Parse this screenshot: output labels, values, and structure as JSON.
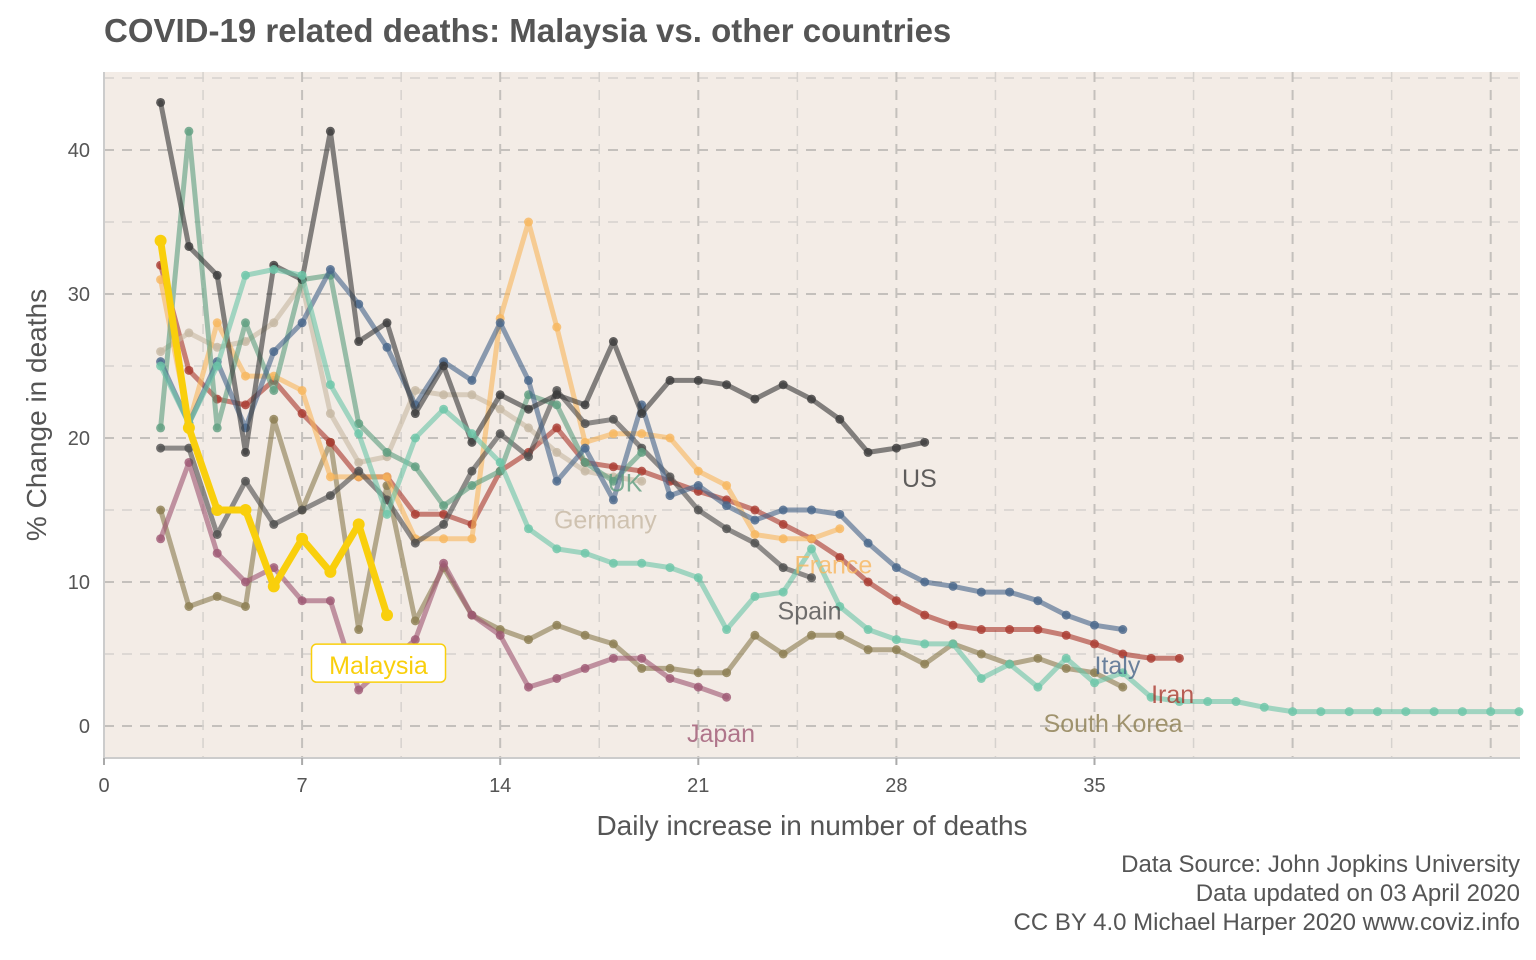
{
  "title": "COVID-19 related deaths: Malaysia vs. other countries",
  "captions": [
    "Data Source: John Jopkins University",
    "Data updated on 03 April 2020",
    "CC BY 4.0 Michael Harper 2020 www.coviz.info"
  ],
  "chart_data": {
    "type": "line",
    "title": "COVID-19 related deaths: Malaysia vs. other countries",
    "xlabel": "Daily increase in number of deaths",
    "ylabel": "% Change in deaths",
    "xlim": [
      0,
      50
    ],
    "ylim": [
      -2,
      45
    ],
    "xticks": [
      0,
      7,
      14,
      21,
      28,
      35
    ],
    "yticks": [
      0,
      10,
      20,
      30,
      40
    ],
    "grid": true,
    "legend": "none (direct labels)",
    "colors": {
      "panel_bg": "#F3ECE6",
      "highlight": "#F9CF0C"
    },
    "series": [
      {
        "name": "South Korea",
        "color": "#8B7D50",
        "label_at": [
          33.2,
          -0.4
        ],
        "x": [
          2,
          3,
          4,
          5,
          6,
          7,
          8,
          9,
          10,
          11,
          12,
          13,
          14,
          15,
          16,
          17,
          18,
          19,
          20,
          21,
          22,
          23,
          24,
          25,
          26,
          27,
          28,
          29,
          30,
          31,
          32,
          33,
          34,
          35,
          36
        ],
        "y": [
          15,
          8.3,
          9,
          8.3,
          21.3,
          15,
          19.7,
          6.7,
          16.7,
          7.3,
          11,
          7.7,
          6.7,
          6,
          7,
          6.3,
          5.7,
          4,
          4,
          3.7,
          3.7,
          6.3,
          5,
          6.3,
          6.3,
          5.3,
          5.3,
          4.3,
          5.7,
          5,
          4.3,
          4.7,
          4,
          3.7,
          2.7
        ]
      },
      {
        "name": "Japan",
        "color": "#9E5773",
        "label_at": [
          20.6,
          -1.1
        ],
        "x": [
          2,
          3,
          4,
          5,
          6,
          7,
          8,
          9,
          10,
          11,
          12,
          13,
          14,
          15,
          16,
          17,
          18,
          19,
          20,
          21,
          22
        ],
        "y": [
          13,
          18.3,
          12,
          10,
          11,
          8.7,
          8.7,
          2.5,
          4.3,
          6,
          11.3,
          7.7,
          6.3,
          2.7,
          3.3,
          4,
          4.7,
          4.7,
          3.3,
          2.7,
          2
        ]
      },
      {
        "name": "Iran",
        "color": "#A93A2F",
        "label_at": [
          37.0,
          1.6
        ],
        "x": [
          2,
          3,
          4,
          5,
          6,
          7,
          8,
          9,
          10,
          11,
          12,
          13,
          14,
          15,
          16,
          17,
          18,
          19,
          20,
          21,
          22,
          23,
          24,
          25,
          26,
          27,
          28,
          29,
          30,
          31,
          32,
          33,
          34,
          35,
          36,
          37,
          38
        ],
        "y": [
          32,
          24.7,
          22.7,
          22.3,
          24,
          21.7,
          19.7,
          17.3,
          17.3,
          14.7,
          14.7,
          14,
          17.7,
          19,
          20.7,
          18.3,
          18,
          17.7,
          17,
          16.3,
          15.7,
          15,
          14,
          13,
          11.7,
          10,
          8.7,
          7.7,
          7,
          6.7,
          6.7,
          6.7,
          6.3,
          5.7,
          5,
          4.7,
          4.7
        ]
      },
      {
        "name": "Germany",
        "color": "#C6B8A2",
        "label_at": [
          15.9,
          13.7
        ],
        "x": [
          2,
          3,
          4,
          5,
          6,
          7,
          8,
          9,
          10,
          11,
          12,
          13,
          14,
          15,
          16,
          17,
          18,
          19
        ],
        "y": [
          26,
          27.3,
          26.3,
          26.7,
          28,
          30.7,
          21.7,
          18.3,
          18.7,
          23.3,
          23,
          23,
          22,
          20.7,
          19,
          17.7,
          17.3,
          17
        ]
      },
      {
        "name": "France",
        "color": "#F7B65E",
        "label_at": [
          24.4,
          10.6
        ],
        "x": [
          2,
          3,
          4,
          5,
          6,
          7,
          8,
          9,
          10,
          11,
          12,
          13,
          14,
          15,
          16,
          17,
          18,
          19,
          20,
          21,
          22,
          23,
          24,
          25,
          26
        ],
        "y": [
          31,
          21,
          28,
          24.3,
          24.3,
          23.3,
          17.3,
          17.3,
          17.3,
          13,
          13,
          13,
          28.3,
          35,
          27.7,
          19.7,
          20.3,
          20.3,
          20,
          17.7,
          16.7,
          13.3,
          13,
          13,
          13.7
        ]
      },
      {
        "name": "Spain",
        "color": "#4D4D4D",
        "label_at": [
          23.8,
          7.4
        ],
        "x": [
          2,
          3,
          4,
          5,
          6,
          7,
          8,
          9,
          10,
          11,
          12,
          13,
          14,
          15,
          16,
          17,
          18,
          19,
          20,
          21,
          22,
          23,
          24,
          25
        ],
        "y": [
          19.3,
          19.3,
          13.3,
          17,
          14,
          15,
          16,
          17.7,
          15.7,
          12.7,
          14,
          17.7,
          20.3,
          18.7,
          23.3,
          21,
          21.3,
          19.3,
          17.3,
          15,
          13.7,
          12.7,
          11,
          10.3
        ]
      },
      {
        "name": "UK",
        "color": "#5E9E7F",
        "label_at": [
          17.8,
          16.3
        ],
        "x": [
          2,
          3,
          4,
          5,
          6,
          7,
          8,
          9,
          10,
          11,
          12,
          13,
          14,
          15,
          16,
          17,
          18,
          19
        ],
        "y": [
          20.7,
          41.3,
          20.7,
          28,
          23.3,
          31,
          31.3,
          21,
          19,
          18,
          15.3,
          16.7,
          17.7,
          23,
          22.3,
          18.3,
          17,
          19
        ]
      },
      {
        "name": "Italy",
        "color": "#47658A",
        "label_at": [
          35.0,
          3.6
        ],
        "x": [
          2,
          3,
          4,
          5,
          6,
          7,
          8,
          9,
          10,
          11,
          12,
          13,
          14,
          15,
          16,
          17,
          18,
          19,
          20,
          21,
          22,
          23,
          24,
          25,
          26,
          27,
          28,
          29,
          30,
          31,
          32,
          33,
          34,
          35,
          36
        ],
        "y": [
          25.3,
          21,
          25.3,
          20.7,
          26,
          28,
          31.7,
          29.3,
          26.3,
          22.3,
          25.3,
          24,
          28,
          24,
          17,
          19.3,
          15.7,
          22.3,
          16,
          16.7,
          15.3,
          14.3,
          15,
          15,
          14.7,
          12.7,
          11,
          10,
          9.7,
          9.3,
          9.3,
          8.7,
          7.7,
          7,
          6.7
        ]
      },
      {
        "name": "US",
        "color": "#3A3A3A",
        "label_at": [
          28.2,
          16.6
        ],
        "x": [
          2,
          3,
          4,
          5,
          6,
          7,
          8,
          9,
          10,
          11,
          12,
          13,
          14,
          15,
          16,
          17,
          18,
          19,
          20,
          21,
          22,
          23,
          24,
          25,
          26,
          27,
          28,
          29
        ],
        "y": [
          43.3,
          33.3,
          31.3,
          19,
          32,
          31,
          41.3,
          26.7,
          28,
          21.7,
          25,
          19.7,
          23,
          22,
          23,
          22.3,
          26.7,
          21.7,
          24,
          24,
          23.7,
          22.7,
          23.7,
          22.7,
          21.3,
          19,
          19.3,
          19.7
        ]
      },
      {
        "name": "",
        "color": "#6CC5A8",
        "x": [
          2,
          3,
          4,
          5,
          6,
          7,
          8,
          9,
          10,
          11,
          12,
          13,
          14,
          15,
          16,
          17,
          18,
          19,
          20,
          21,
          22,
          23,
          24,
          25,
          26,
          27,
          28,
          29,
          30,
          31,
          32,
          33,
          34,
          35,
          36,
          37,
          38,
          39,
          40,
          41,
          42,
          43,
          44,
          45,
          46,
          47,
          48,
          49,
          50
        ],
        "y": [
          25,
          21,
          25,
          31.3,
          31.7,
          31.3,
          23.7,
          20.3,
          14.7,
          20,
          22,
          20.3,
          18.3,
          13.7,
          12.3,
          12,
          11.3,
          11.3,
          11,
          10.3,
          6.7,
          9,
          9.3,
          12.3,
          8.3,
          6.7,
          6,
          5.7,
          5.7,
          3.3,
          4.3,
          2.7,
          4.7,
          3,
          3.7,
          2,
          1.7,
          1.7,
          1.7,
          1.3,
          1,
          1,
          1,
          1,
          1,
          1,
          1,
          1,
          1
        ]
      },
      {
        "name": "Malaysia",
        "color": "#F9CF0C",
        "highlight": true,
        "label_at": [
          9.7,
          3.6
        ],
        "x": [
          2,
          3,
          4,
          5,
          6,
          7,
          8,
          9,
          10
        ],
        "y": [
          33.7,
          20.7,
          15,
          15,
          9.7,
          13,
          10.7,
          14,
          7.7
        ]
      }
    ]
  }
}
